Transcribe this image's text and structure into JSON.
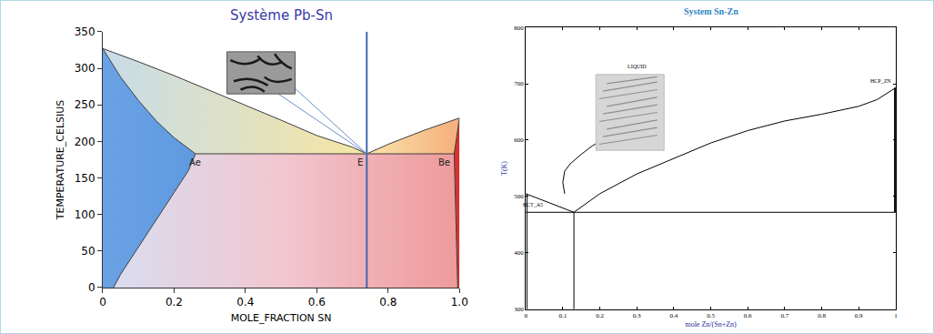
{
  "chart_data": [
    {
      "type": "line",
      "title": "Système Pb-Sn",
      "x_label": "MOLE_FRACTION SN",
      "y_label": "TEMPERATURE_CELSIUS",
      "xlim": [
        0,
        1
      ],
      "ylim": [
        0,
        350
      ],
      "xticks": [
        0,
        0.2,
        0.4,
        0.6,
        0.8,
        {
          "value": 1,
          "label": "1.0"
        }
      ],
      "yticks": [
        0,
        50,
        100,
        150,
        200,
        250,
        300,
        350
      ],
      "grid": false,
      "series": [
        {
          "color": "#3c3c3c",
          "x": [
            0,
            0.1,
            0.2,
            0.3,
            0.4,
            0.5,
            0.6,
            0.7,
            0.74
          ],
          "values": [
            327,
            309,
            290,
            270,
            250,
            229,
            208,
            192,
            183
          ]
        },
        {
          "color": "#3c3c3c",
          "x": [
            0.74,
            0.8,
            0.9,
            1
          ],
          "values": [
            183,
            196,
            215,
            232
          ]
        },
        {
          "color": "#3c3c3c",
          "x": [
            0,
            0.05,
            0.1,
            0.15,
            0.2,
            0.26
          ],
          "values": [
            327,
            288,
            256,
            228,
            205,
            183
          ]
        },
        {
          "color": "#3c3c3c",
          "x": [
            0.26,
            0.24,
            0.2,
            0.16,
            0.12,
            0.08,
            0.05,
            0.03
          ],
          "values": [
            183,
            160,
            130,
            100,
            70,
            40,
            18,
            0
          ]
        },
        {
          "color": "#3c3c3c",
          "x": [
            0.26,
            0.985
          ],
          "values": [
            183,
            183
          ]
        },
        {
          "color": "#3c3c3c",
          "x": [
            1,
            0.985
          ],
          "values": [
            232,
            183
          ]
        },
        {
          "color": "#3c3c3c",
          "x": [
            0.985,
            0.99,
            0.995
          ],
          "values": [
            183,
            100,
            0
          ]
        },
        {
          "color": "#4169b0",
          "x": [
            0.74,
            0.74
          ],
          "values": [
            0,
            350
          ]
        }
      ],
      "annotations": [
        {
          "text": "Ae",
          "x": 0.26,
          "y": 183
        },
        {
          "text": "E",
          "x": 0.74,
          "y": 183
        },
        {
          "text": "Be",
          "x": 0.985,
          "y": 183
        }
      ]
    },
    {
      "type": "line",
      "title": "System Sn-Zn",
      "x_label": "mole Zn/(Sn+Zn)",
      "y_label": "T(K)",
      "xlim": [
        0,
        1
      ],
      "ylim": [
        300,
        800
      ],
      "xticks": [
        0,
        0.1,
        0.2,
        0.3,
        0.4,
        0.5,
        0.6,
        0.7,
        0.8,
        0.9,
        1
      ],
      "yticks": [
        300,
        400,
        500,
        600,
        700,
        800
      ],
      "grid": false,
      "series": [
        {
          "color": "#000000",
          "x": [
            0,
            0.13
          ],
          "values": [
            505,
            472
          ]
        },
        {
          "color": "#000000",
          "x": [
            0.13,
            0.2,
            0.3,
            0.4,
            0.5,
            0.6,
            0.7,
            0.8,
            0.9,
            0.95,
            1
          ],
          "values": [
            472,
            505,
            540,
            568,
            595,
            617,
            634,
            646,
            660,
            672,
            693
          ]
        },
        {
          "color": "#000000",
          "x": [
            0.105,
            0.1,
            0.105,
            0.12,
            0.15,
            0.18,
            0.22
          ],
          "values": [
            505,
            525,
            545,
            558,
            575,
            590,
            605
          ]
        },
        {
          "color": "#000000",
          "x": [
            0,
            1
          ],
          "values": [
            472,
            472
          ]
        },
        {
          "color": "#000000",
          "x": [
            0.13,
            0.13
          ],
          "values": [
            300,
            472
          ]
        },
        {
          "color": "#000000",
          "x": [
            0.003,
            0.003
          ],
          "values": [
            300,
            505
          ]
        },
        {
          "color": "#000000",
          "x": [
            0.998,
            0.998
          ],
          "values": [
            472,
            693
          ]
        }
      ],
      "annotations": [
        {
          "text": "LIQUID",
          "x": 0.3,
          "y": 730
        },
        {
          "text": "HCP_ZN",
          "x": 0.96,
          "y": 705
        },
        {
          "text": "BCT_A5",
          "x": 0.02,
          "y": 485
        }
      ]
    }
  ]
}
